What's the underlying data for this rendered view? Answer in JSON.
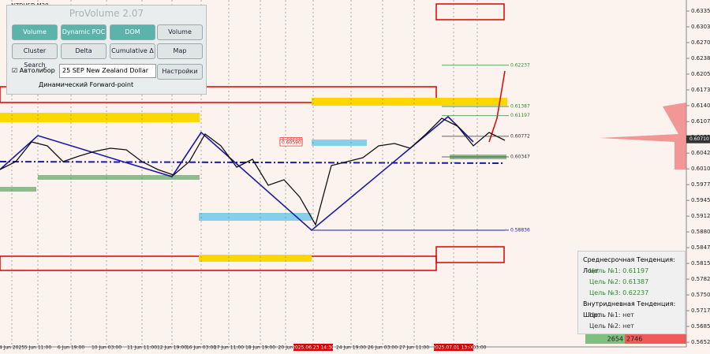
{
  "symbol": "NZDUSD,M30",
  "chart_data": {
    "type": "line",
    "series": [
      {
        "name": "NZDUSD",
        "color": "#111111",
        "values": [
          0.60087,
          0.60249,
          0.60656,
          0.60575,
          0.60249,
          0.60363,
          0.60461,
          0.60526,
          0.60493,
          0.60249,
          0.60087,
          0.59973,
          0.60249,
          0.60818,
          0.60575,
          0.60135,
          0.60298,
          0.59762,
          0.59875,
          0.59518,
          0.58948,
          0.60168,
          0.60249,
          0.60331,
          0.60575,
          0.60623,
          0.60526,
          0.60818,
          0.61144,
          0.60981,
          0.60575,
          0.60851,
          0.60688
        ]
      }
    ],
    "ylim": [
      0.56428,
      0.63583
    ],
    "yticks": [
      0.63355,
      {
        "value": 0.6303,
        "label": "0.63030"
      },
      0.62705,
      {
        "value": 0.6238,
        "label": "0.62380"
      },
      0.62055,
      {
        "value": 0.6173,
        "label": "0.61730"
      },
      0.61405,
      0.61075,
      {
        "value": 0.6075,
        "label": "0.60750"
      },
      0.60425,
      {
        "value": 0.601,
        "label": "0.60100"
      },
      0.59775,
      0.5945,
      0.59125,
      {
        "value": 0.588,
        "label": "0.58800"
      },
      0.58475,
      {
        "value": 0.5815,
        "label": "0.58150"
      },
      0.57825,
      {
        "value": 0.575,
        "label": "0.57500"
      },
      0.57175,
      0.5685,
      0.56525
    ],
    "levels": [
      0.62237,
      0.61387,
      0.61197,
      0.60772,
      0.60347,
      0.58836
    ],
    "current_price": {
      "value": 0.6071,
      "label": "0.60710"
    },
    "pins": [
      {
        "value": 0.6063,
        "label": "0.60630"
      },
      {
        "value": 0.6059,
        "label": "0.60590"
      }
    ]
  },
  "time_axis": [
    "4 Jun 2025",
    "5 Jun 11:00",
    "6 Jun 19:00",
    "10 Jun 03:00",
    "11 Jun 11:00",
    "12 Jun 19:00",
    "16 Jun 03:00",
    "17 Jun 11:00",
    "18 Jun 19:00",
    "20 Jun",
    "2025.06.23 14:30",
    "24 Jun 19:00",
    "26 Jun 03:00",
    "27 Jun 11:00",
    "2025.07.01 13:00",
    "3 03:00"
  ],
  "panel": {
    "title": "ProVolume 2.07",
    "buttons": [
      "Volume Profile",
      "Dynamic POC",
      "DOM",
      "Volume",
      "Cluster Search",
      "Delta",
      "Cumulative Δ",
      "Map"
    ],
    "auto": "Автолибор",
    "instrument": "25 SEP New Zealand Dollar",
    "settings": "Настройки",
    "forward": "Динамический Forward-point"
  },
  "info": {
    "mid_trend": "Среднесрочная Тенденция: Лонг",
    "mid_targets": [
      "Цель №1: 0.61197",
      "Цель №2: 0.61387",
      "Цель №3: 0.62237"
    ],
    "intraday_trend": "Внутридневная Тенденция: Шорт",
    "intraday_targets": [
      "Цель №1: нет",
      "Цель №2: нет"
    ]
  },
  "volume_bar": {
    "buy": "2654",
    "sell": "2746"
  }
}
